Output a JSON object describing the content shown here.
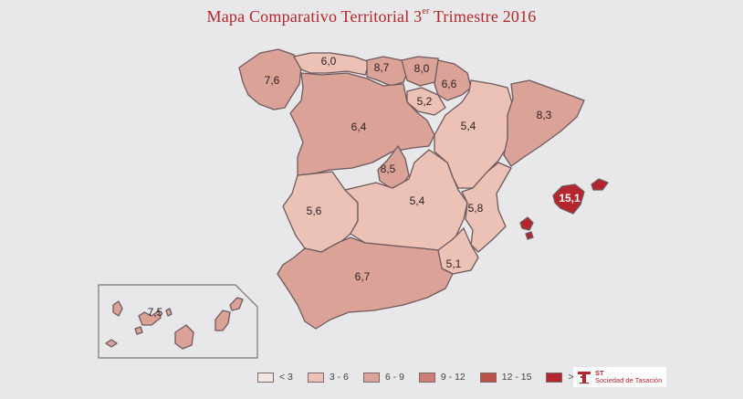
{
  "title": {
    "main": "Mapa Comparativo Territorial 3",
    "sup": "er",
    "tail": " Trimestre 2016"
  },
  "regions": [
    {
      "name": "Galicia",
      "value": "7,6",
      "color": "#dba398"
    },
    {
      "name": "Asturias",
      "value": "6,0",
      "color": "#ecc1b6"
    },
    {
      "name": "Cantabria",
      "value": "8,7",
      "color": "#dba398"
    },
    {
      "name": "País Vasco",
      "value": "8,0",
      "color": "#dba398"
    },
    {
      "name": "Navarra",
      "value": "6,6",
      "color": "#dba398"
    },
    {
      "name": "La Rioja",
      "value": "5,2",
      "color": "#ecc1b6"
    },
    {
      "name": "Castilla y León",
      "value": "6,4",
      "color": "#dba398"
    },
    {
      "name": "Aragón",
      "value": "5,4",
      "color": "#ecc1b6"
    },
    {
      "name": "Cataluña",
      "value": "8,3",
      "color": "#dba398"
    },
    {
      "name": "Madrid",
      "value": "8,5",
      "color": "#dba398"
    },
    {
      "name": "Extremadura",
      "value": "5,6",
      "color": "#ecc1b6"
    },
    {
      "name": "Castilla-La Mancha",
      "value": "5,4",
      "color": "#ecc1b6"
    },
    {
      "name": "Comunidad Valenciana",
      "value": "5,8",
      "color": "#ecc1b6"
    },
    {
      "name": "Murcia",
      "value": "5,1",
      "color": "#ecc1b6"
    },
    {
      "name": "Andalucía",
      "value": "6,7",
      "color": "#dba398"
    },
    {
      "name": "Baleares",
      "value": "15,1",
      "color": "#b5252b"
    },
    {
      "name": "Canarias",
      "value": "7,5",
      "color": "#dba398"
    }
  ],
  "legend": [
    {
      "label": "< 3",
      "color": "#f5e6e1"
    },
    {
      "label": "3 - 6",
      "color": "#ecc1b6"
    },
    {
      "label": "6 - 9",
      "color": "#dba398"
    },
    {
      "label": "9 - 12",
      "color": "#cc7e72"
    },
    {
      "label": "12 - 15",
      "color": "#bb5148"
    },
    {
      "label": "> 15",
      "color": "#b5252b"
    }
  ],
  "logo": {
    "abbr": "ST",
    "name": "Sociedad de Tasación",
    "icon": "st-logo-icon",
    "color": "#b5252b"
  }
}
